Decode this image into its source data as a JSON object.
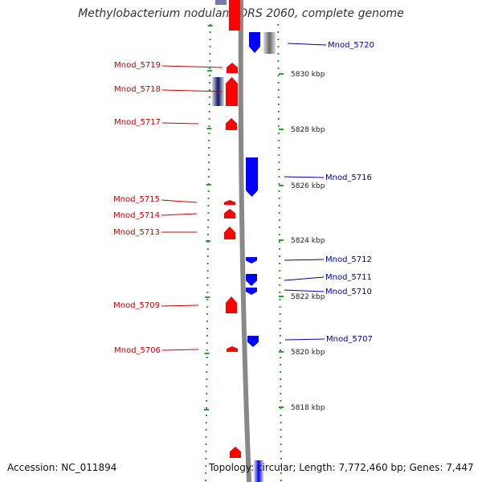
{
  "title": "Methylobacterium nodulans ORS 2060, complete genome",
  "accession": "Accession: NC_011894",
  "topology": "Topology: circular; Length: 7,772,460 bp; Genes: 7,447",
  "colors": {
    "forward": "#ff0000",
    "reverse": "#0000ff",
    "label_forward": "#cc0000",
    "label_reverse": "#0000aa",
    "backbone": "#888888",
    "track_dots": "#2a9d2a",
    "ruler_text": "#222222"
  },
  "ruler": [
    {
      "label": "5830 kbp"
    },
    {
      "label": "5828 kbp"
    },
    {
      "label": "5826 kbp"
    },
    {
      "label": "5824 kbp"
    },
    {
      "label": "5822 kbp"
    },
    {
      "label": "5820 kbp"
    },
    {
      "label": "5818 kbp"
    }
  ],
  "genes": [
    {
      "name": "Mnod_5720",
      "strand": "reverse"
    },
    {
      "name": "Mnod_5719",
      "strand": "forward"
    },
    {
      "name": "Mnod_5718",
      "strand": "forward"
    },
    {
      "name": "Mnod_5717",
      "strand": "forward"
    },
    {
      "name": "Mnod_5716",
      "strand": "reverse"
    },
    {
      "name": "Mnod_5715",
      "strand": "forward"
    },
    {
      "name": "Mnod_5714",
      "strand": "forward"
    },
    {
      "name": "Mnod_5713",
      "strand": "forward"
    },
    {
      "name": "Mnod_5712",
      "strand": "reverse"
    },
    {
      "name": "Mnod_5711",
      "strand": "reverse"
    },
    {
      "name": "Mnod_5710",
      "strand": "reverse"
    },
    {
      "name": "Mnod_5709",
      "strand": "forward"
    },
    {
      "name": "Mnod_5707",
      "strand": "reverse"
    },
    {
      "name": "Mnod_5706",
      "strand": "forward"
    }
  ]
}
